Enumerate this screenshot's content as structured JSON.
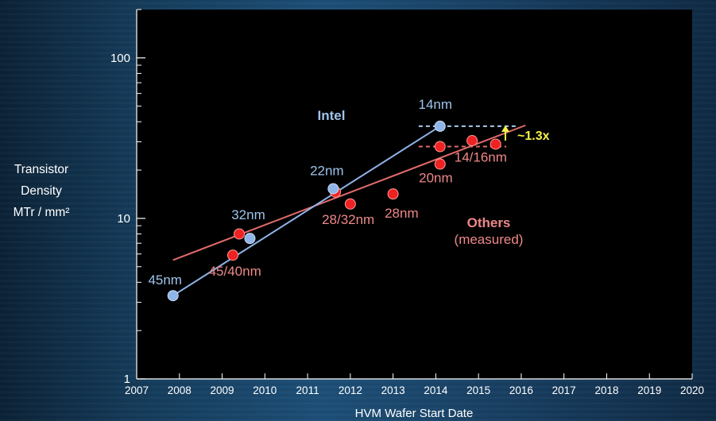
{
  "chart_data": {
    "type": "scatter",
    "xlabel": "HVM Wafer Start Date",
    "ylabel_lines": [
      "Transistor",
      "Density",
      "MTr / mm²"
    ],
    "xlim": [
      2007,
      2020
    ],
    "ylim": [
      1,
      200
    ],
    "yscale": "log",
    "x_ticks": [
      "2007",
      "2008",
      "2009",
      "2010",
      "2011",
      "2012",
      "2013",
      "2014",
      "2015",
      "2016",
      "2017",
      "2018",
      "2019",
      "2020"
    ],
    "y_ticks": [
      {
        "value": 1,
        "label": "1"
      },
      {
        "value": 10,
        "label": "10"
      },
      {
        "value": 100,
        "label": "100"
      }
    ],
    "grid": false,
    "series": [
      {
        "name": "Intel",
        "color": "#8fb4e8",
        "points": [
          {
            "x": 2007.85,
            "y": 3.3,
            "label": "45nm"
          },
          {
            "x": 2009.65,
            "y": 7.5,
            "label": "32nm"
          },
          {
            "x": 2011.6,
            "y": 15.3,
            "label": "22nm"
          },
          {
            "x": 2014.1,
            "y": 37.5,
            "label": "14nm"
          }
        ],
        "trend": [
          {
            "x": 2007.85,
            "y": 3.3
          },
          {
            "x": 2014.1,
            "y": 37.5
          }
        ]
      },
      {
        "name": "Others (measured)",
        "name_lines": [
          "Others",
          "(measured)"
        ],
        "color": "#ee2020",
        "points": [
          {
            "x": 2009.25,
            "y": 5.9
          },
          {
            "x": 2009.4,
            "y": 8.0
          },
          {
            "x": 2011.65,
            "y": 14.6
          },
          {
            "x": 2012.0,
            "y": 12.3
          },
          {
            "x": 2013.0,
            "y": 14.2
          },
          {
            "x": 2014.1,
            "y": 21.8
          },
          {
            "x": 2014.1,
            "y": 28.0
          },
          {
            "x": 2014.85,
            "y": 30.5
          },
          {
            "x": 2015.4,
            "y": 29.0
          }
        ],
        "point_labels": [
          {
            "text": "45/40nm",
            "x": 2009.3,
            "y": 4.4
          },
          {
            "text": "28/32nm",
            "x": 2011.95,
            "y": 9.2
          },
          {
            "text": "28nm",
            "x": 2013.2,
            "y": 10.1
          },
          {
            "text": "20nm",
            "x": 2014.0,
            "y": 16.8
          },
          {
            "text": "14/16nm",
            "x": 2015.05,
            "y": 22.6
          }
        ],
        "trend": [
          {
            "x": 2007.85,
            "y": 5.5
          },
          {
            "x": 2016.1,
            "y": 38.0
          }
        ]
      }
    ],
    "annotations": [
      {
        "text": "~1.3x",
        "color": "#f2f24a"
      }
    ]
  }
}
